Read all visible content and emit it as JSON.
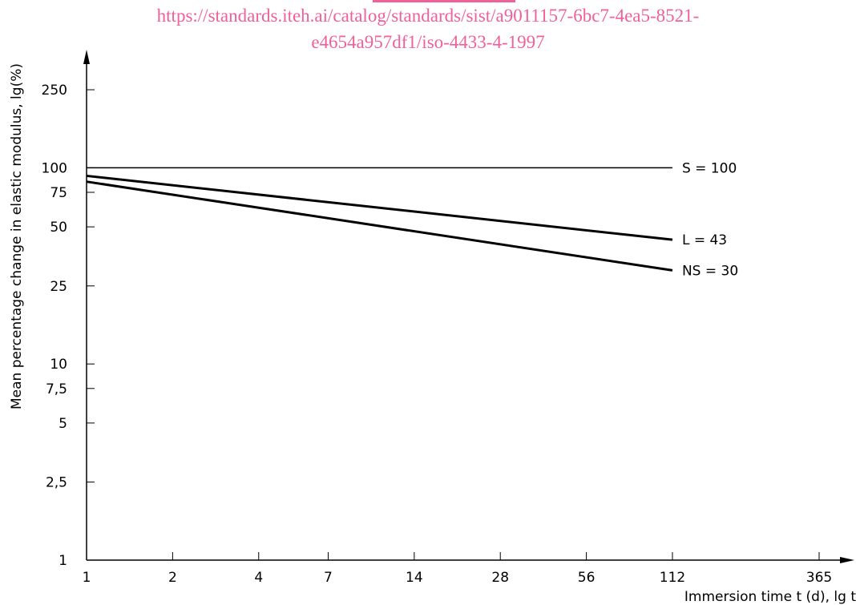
{
  "watermark": {
    "line1": "https://standards.iteh.ai/catalog/standards/sist/a9011157-6bc7-4ea5-8521-",
    "line2": "e4654a957df1/iso-4433-4-1997",
    "color": "#f0609a"
  },
  "chart_data": {
    "type": "line",
    "xlabel": "Immersion time t (d), lg t",
    "ylabel": "Mean percentage change in elastic modulus, lg(%)",
    "x_scale": "log",
    "y_scale": "log",
    "xlim": [
      1,
      365
    ],
    "ylim": [
      1,
      250
    ],
    "x_ticks": [
      {
        "value": 1,
        "label": "1"
      },
      {
        "value": 2,
        "label": "2"
      },
      {
        "value": 4,
        "label": "4"
      },
      {
        "value": 7,
        "label": "7"
      },
      {
        "value": 14,
        "label": "14"
      },
      {
        "value": 28,
        "label": "28"
      },
      {
        "value": 56,
        "label": "56"
      },
      {
        "value": 112,
        "label": "112"
      },
      {
        "value": 365,
        "label": "365"
      }
    ],
    "y_ticks": [
      {
        "value": 1,
        "label": "1"
      },
      {
        "value": 2.5,
        "label": "2,5"
      },
      {
        "value": 5,
        "label": "5"
      },
      {
        "value": 7.5,
        "label": "7,5"
      },
      {
        "value": 10,
        "label": "10"
      },
      {
        "value": 25,
        "label": "25"
      },
      {
        "value": 50,
        "label": "50"
      },
      {
        "value": 75,
        "label": "75"
      },
      {
        "value": 100,
        "label": "100"
      },
      {
        "value": 250,
        "label": "250"
      }
    ],
    "series": [
      {
        "name": "S = 100",
        "x": [
          1,
          112
        ],
        "y": [
          100,
          100
        ],
        "thin": true
      },
      {
        "name": "L = 43",
        "x": [
          1,
          112
        ],
        "y": [
          91,
          43
        ],
        "thin": false
      },
      {
        "name": "NS = 30",
        "x": [
          1,
          112
        ],
        "y": [
          85,
          30
        ],
        "thin": false
      }
    ],
    "grid": false,
    "legend": "inline labels at line ends",
    "color": "#000000"
  }
}
